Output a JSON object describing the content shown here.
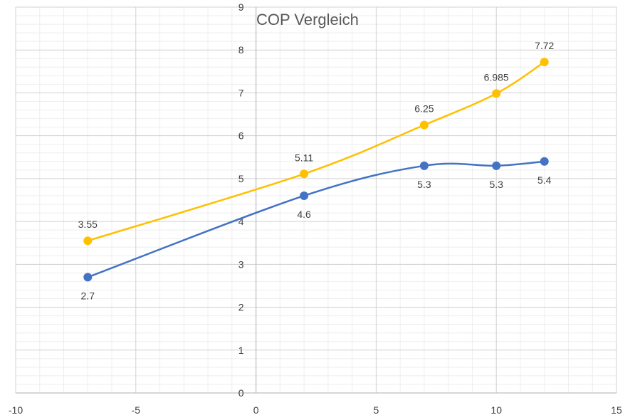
{
  "chart_data": {
    "type": "scatter",
    "title": "COP Vergleich",
    "xlim": [
      -10,
      15
    ],
    "ylim": [
      0,
      9
    ],
    "x_ticks": [
      "-10",
      "-5",
      "0",
      "5",
      "10",
      "15"
    ],
    "y_ticks": [
      "0",
      "1",
      "2",
      "3",
      "4",
      "5",
      "6",
      "7",
      "8",
      "9"
    ],
    "grid": true,
    "minor_grid": true,
    "smooth_lines": true,
    "series": [
      {
        "color": "#4472C4",
        "label_position": "below",
        "points": [
          {
            "x": -7,
            "y": 2.7,
            "label": "2.7"
          },
          {
            "x": 2,
            "y": 4.6,
            "label": "4.6"
          },
          {
            "x": 7,
            "y": 5.3,
            "label": "5.3"
          },
          {
            "x": 10,
            "y": 5.3,
            "label": "5.3"
          },
          {
            "x": 12,
            "y": 5.4,
            "label": "5.4"
          }
        ]
      },
      {
        "color": "#FFC000",
        "label_position": "above",
        "points": [
          {
            "x": -7,
            "y": 3.55,
            "label": "3.55"
          },
          {
            "x": 2,
            "y": 5.11,
            "label": "5.11"
          },
          {
            "x": 7,
            "y": 6.25,
            "label": "6.25"
          },
          {
            "x": 10,
            "y": 6.985,
            "label": "6.985"
          },
          {
            "x": 12,
            "y": 7.72,
            "label": "7.72"
          }
        ]
      }
    ]
  }
}
